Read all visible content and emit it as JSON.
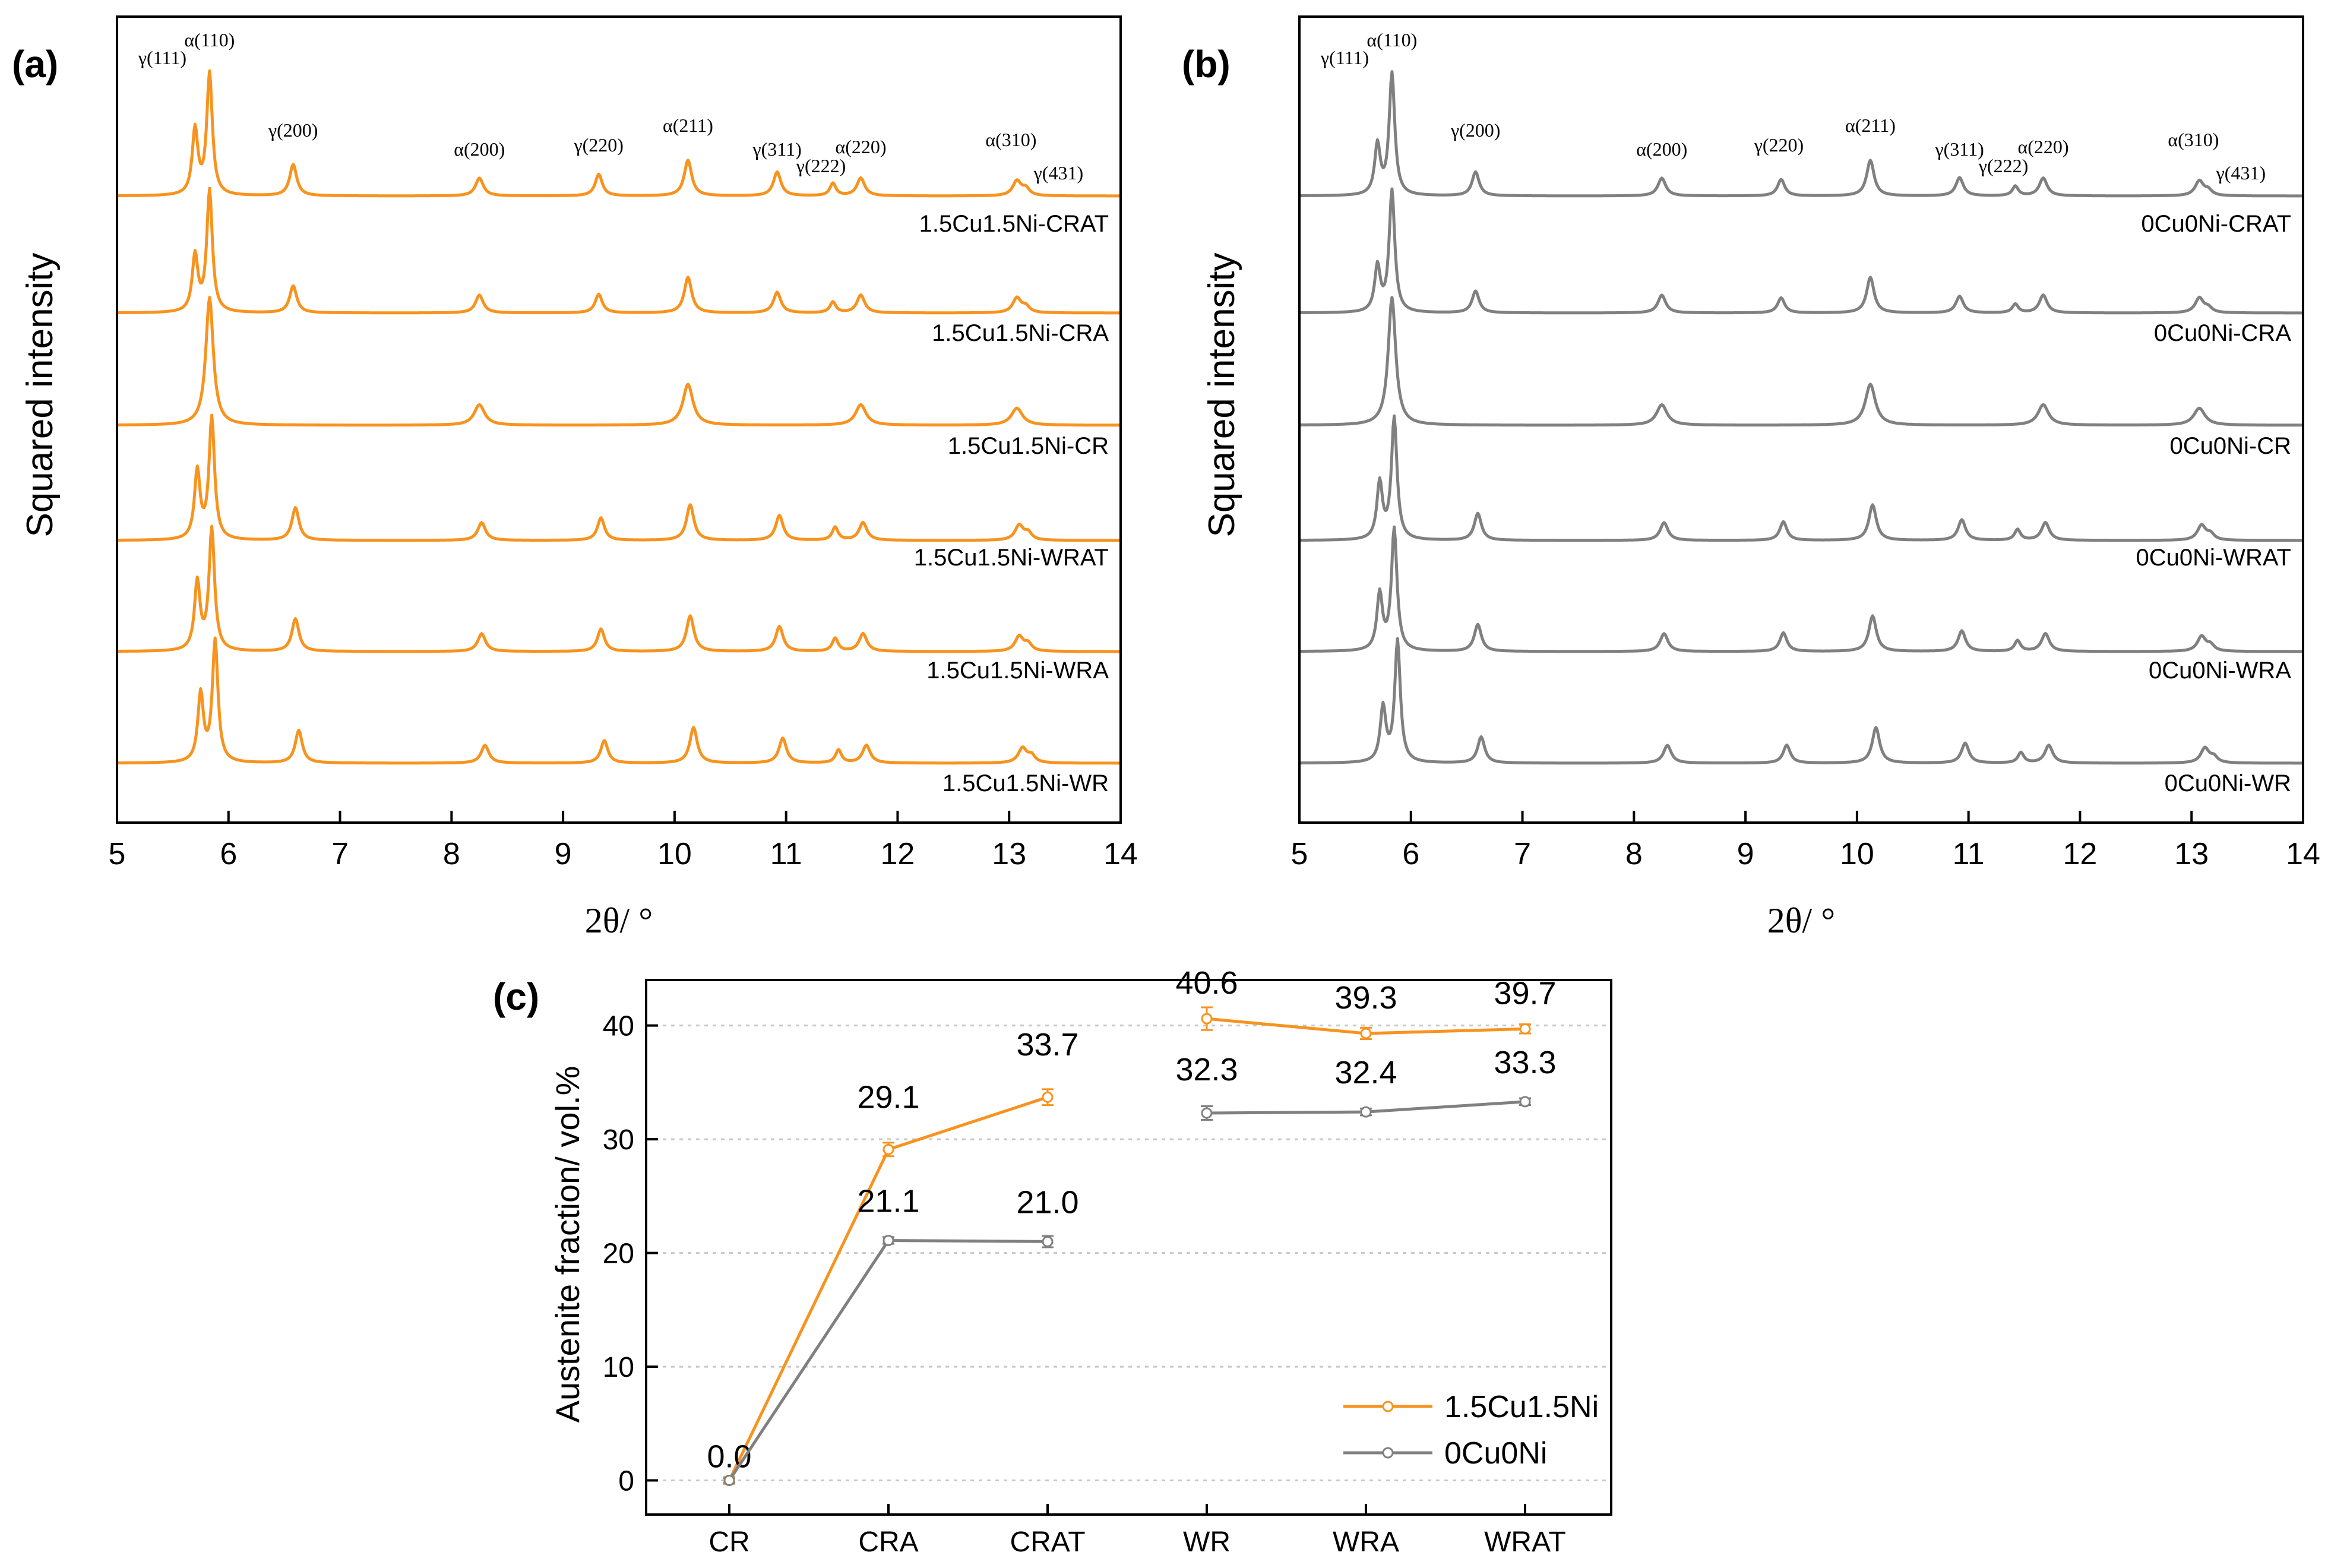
{
  "chart_data": [
    {
      "id": "a",
      "panel_label": "(a)",
      "type": "line",
      "xlabel": "2θ/ °",
      "ylabel": "Squared intensity",
      "xlim": [
        5,
        14
      ],
      "xticks": [
        5,
        6,
        7,
        8,
        9,
        10,
        11,
        12,
        13,
        14
      ],
      "color": "#F7931E",
      "peak_labels": [
        {
          "text": "γ(111)",
          "x": 5.7
        },
        {
          "text": "α(110)",
          "x": 5.83
        },
        {
          "text": "γ(200)",
          "x": 6.58
        },
        {
          "text": "α(200)",
          "x": 8.25
        },
        {
          "text": "γ(220)",
          "x": 9.32
        },
        {
          "text": "α(211)",
          "x": 10.12
        },
        {
          "text": "γ(311)",
          "x": 10.92
        },
        {
          "text": "γ(222)",
          "x": 11.42
        },
        {
          "text": "α(220)",
          "x": 11.67
        },
        {
          "text": "α(310)",
          "x": 13.07
        },
        {
          "text": "γ(431)",
          "x": 13.15
        }
      ],
      "series": [
        {
          "name": "1.5Cu1.5Ni-CRAT",
          "shift": 0.0,
          "austenite": true,
          "alpha_scale": 1.0,
          "gamma_scale": 0.72
        },
        {
          "name": "1.5Cu1.5Ni-CRA",
          "shift": 0.0,
          "austenite": true,
          "alpha_scale": 1.0,
          "gamma_scale": 0.62
        },
        {
          "name": "1.5Cu1.5Ni-CR",
          "shift": 0.0,
          "austenite": false,
          "alpha_scale": 1.0,
          "gamma_scale": 0.0
        },
        {
          "name": "1.5Cu1.5Ni-WRAT",
          "shift": 0.02,
          "austenite": true,
          "alpha_scale": 1.0,
          "gamma_scale": 0.75
        },
        {
          "name": "1.5Cu1.5Ni-WRA",
          "shift": 0.02,
          "austenite": true,
          "alpha_scale": 1.0,
          "gamma_scale": 0.75
        },
        {
          "name": "1.5Cu1.5Ni-WR",
          "shift": 0.05,
          "austenite": true,
          "alpha_scale": 1.0,
          "gamma_scale": 0.75
        }
      ]
    },
    {
      "id": "b",
      "panel_label": "(b)",
      "type": "line",
      "xlabel": "2θ/ °",
      "ylabel": "Squared intensity",
      "xlim": [
        5,
        14
      ],
      "xticks": [
        5,
        6,
        7,
        8,
        9,
        10,
        11,
        12,
        13,
        14
      ],
      "color": "#808080",
      "peak_labels": [
        {
          "text": "γ(111)",
          "x": 5.7
        },
        {
          "text": "α(110)",
          "x": 5.83
        },
        {
          "text": "γ(200)",
          "x": 6.58
        },
        {
          "text": "α(200)",
          "x": 8.25
        },
        {
          "text": "γ(220)",
          "x": 9.3
        },
        {
          "text": "α(211)",
          "x": 10.12
        },
        {
          "text": "γ(311)",
          "x": 10.92
        },
        {
          "text": "γ(222)",
          "x": 11.42
        },
        {
          "text": "α(220)",
          "x": 11.67
        },
        {
          "text": "α(310)",
          "x": 13.07
        },
        {
          "text": "γ(431)",
          "x": 13.15
        }
      ],
      "series": [
        {
          "name": "0Cu0Ni-CRAT",
          "shift": 0.0,
          "austenite": true,
          "alpha_scale": 1.0,
          "gamma_scale": 0.55
        },
        {
          "name": "0Cu0Ni-CRA",
          "shift": 0.0,
          "austenite": true,
          "alpha_scale": 1.0,
          "gamma_scale": 0.5
        },
        {
          "name": "0Cu0Ni-CR",
          "shift": 0.0,
          "austenite": false,
          "alpha_scale": 1.0,
          "gamma_scale": 0.0
        },
        {
          "name": "0Cu0Ni-WRAT",
          "shift": 0.02,
          "austenite": true,
          "alpha_scale": 1.0,
          "gamma_scale": 0.62
        },
        {
          "name": "0Cu0Ni-WRA",
          "shift": 0.02,
          "austenite": true,
          "alpha_scale": 1.0,
          "gamma_scale": 0.62
        },
        {
          "name": "0Cu0Ni-WR",
          "shift": 0.05,
          "austenite": true,
          "alpha_scale": 1.0,
          "gamma_scale": 0.6
        }
      ]
    },
    {
      "id": "c",
      "panel_label": "(c)",
      "type": "line",
      "xlabel": "",
      "ylabel": "Austenite fraction/ vol.%",
      "ylim": [
        -3,
        44
      ],
      "yticks": [
        0,
        10,
        20,
        30,
        40
      ],
      "categories": [
        "CR",
        "CRA",
        "CRAT",
        "WR",
        "WRA",
        "WRAT"
      ],
      "legend_position": "bottom-right",
      "grid": "dotted horizontal",
      "series": [
        {
          "name": "1.5Cu1.5Ni",
          "color": "#F7931E",
          "segments": [
            [
              0,
              1,
              2
            ],
            [
              3,
              4,
              5
            ]
          ],
          "values": [
            0.0,
            29.1,
            33.7,
            40.6,
            39.3,
            39.7
          ],
          "errors": [
            0.3,
            0.6,
            0.7,
            1.0,
            0.5,
            0.4
          ],
          "labels": [
            "0.0",
            "29.1",
            "33.7",
            "40.6",
            "39.3",
            "39.7"
          ]
        },
        {
          "name": "0Cu0Ni",
          "color": "#808080",
          "segments": [
            [
              0,
              1,
              2
            ],
            [
              3,
              4,
              5
            ]
          ],
          "values": [
            0.0,
            21.1,
            21.0,
            32.3,
            32.4,
            33.3
          ],
          "errors": [
            0.2,
            0.3,
            0.5,
            0.6,
            0.3,
            0.3
          ],
          "labels": [
            "",
            "21.1",
            "21.0",
            "32.3",
            "32.4",
            "33.3"
          ]
        }
      ]
    }
  ]
}
